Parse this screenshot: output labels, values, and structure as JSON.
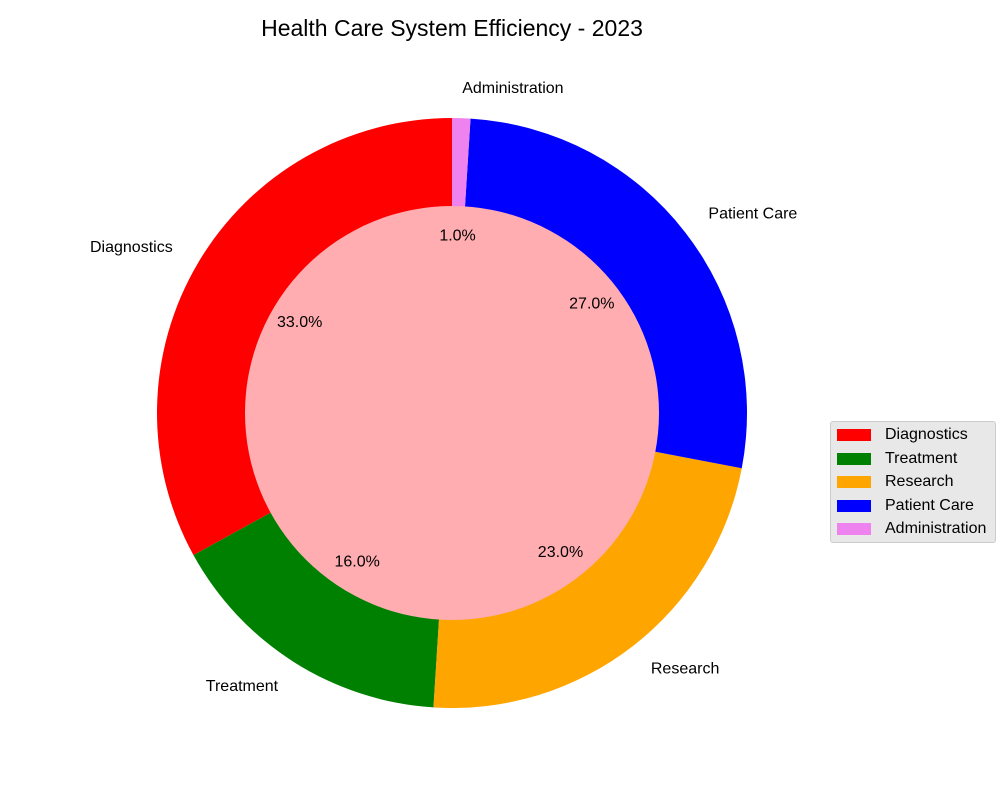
{
  "chart_data": {
    "type": "pie",
    "title": "Health Care System Efficiency - 2023",
    "categories": [
      "Diagnostics",
      "Treatment",
      "Research",
      "Patient Care",
      "Administration"
    ],
    "values": [
      33.0,
      16.0,
      23.0,
      27.0,
      1.0
    ],
    "percent_labels": [
      "33.0%",
      "16.0%",
      "23.0%",
      "27.0%",
      "1.0%"
    ],
    "colors": [
      "#ff0000",
      "#008000",
      "#ffa500",
      "#0000ff",
      "#ee82ee"
    ],
    "center_color": "#ffadb1",
    "donut": true,
    "start_angle_deg": 90,
    "direction": "counterclockwise",
    "legend_position": "right"
  }
}
